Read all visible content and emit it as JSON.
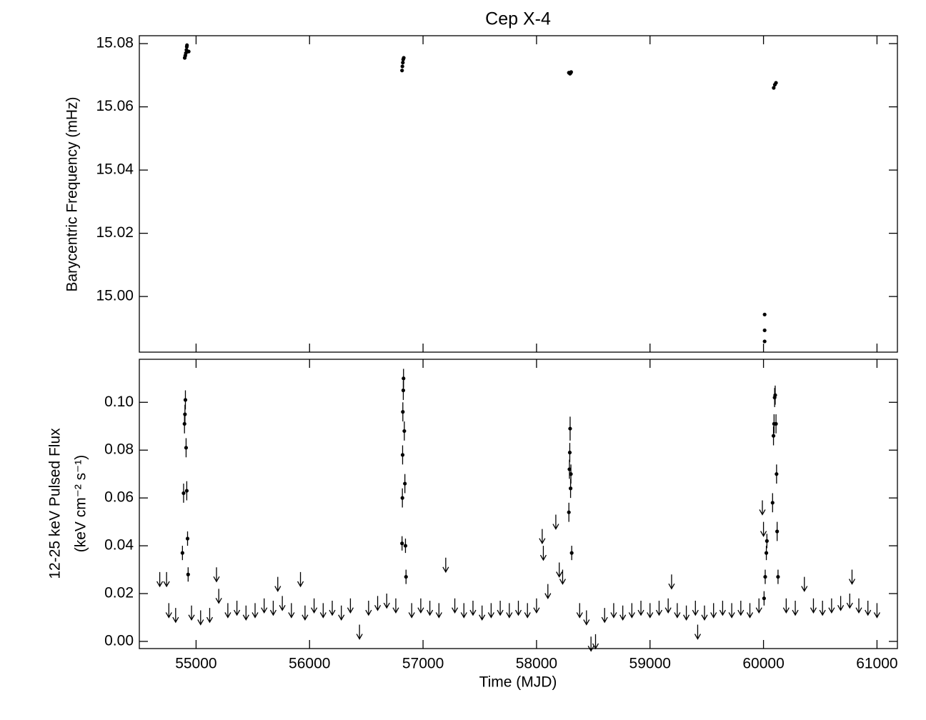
{
  "chart_data": [
    {
      "type": "scatter",
      "title": "Cep X-4",
      "ylabel": "Barycentric Frequency (mHz)",
      "xlim": [
        54500,
        61180
      ],
      "ylim": [
        14.9824,
        15.0825
      ],
      "yticks": [
        {
          "value": 15.0,
          "label": "15.00"
        },
        {
          "value": 15.02,
          "label": "15.02"
        },
        {
          "value": 15.04,
          "label": "15.04"
        },
        {
          "value": 15.06,
          "label": "15.06"
        },
        {
          "value": 15.08,
          "label": "15.08"
        }
      ],
      "series": [
        {
          "color": "#000000",
          "x": [
            54900,
            54905,
            54910,
            54915,
            54918,
            54920,
            54935,
            56815,
            56818,
            56822,
            56825,
            56830,
            58285,
            58295,
            58305,
            58300,
            60010,
            60010,
            60010,
            60090,
            60100,
            60110
          ],
          "values": [
            15.0755,
            15.0762,
            15.077,
            15.078,
            15.079,
            15.0795,
            15.0775,
            15.0715,
            15.0728,
            15.074,
            15.075,
            15.0755,
            15.0708,
            15.0705,
            15.071,
            15.0707,
            14.9943,
            14.9893,
            14.9858,
            15.066,
            15.067,
            15.0676
          ]
        }
      ]
    },
    {
      "type": "scatter",
      "xlabel": "Time (MJD)",
      "ylabel": [
        "12-25 keV Pulsed Flux",
        "(keV cm⁻² s⁻¹)"
      ],
      "xlim": [
        54500,
        61180
      ],
      "ylim": [
        -0.003,
        0.118
      ],
      "xticks": [
        55000,
        56000,
        57000,
        58000,
        59000,
        60000,
        61000
      ],
      "yticks": [
        {
          "value": 0,
          "label": "0.00"
        },
        0.02,
        0.04,
        0.06,
        0.08,
        {
          "value": 0.1,
          "label": "0.10"
        }
      ],
      "series": [
        {
          "color": "#000000",
          "x": [
            54880,
            54890,
            54898,
            54902,
            54906,
            54912,
            54918,
            54925,
            54930,
            56815,
            56818,
            56820,
            56822,
            56826,
            56828,
            56835,
            56840,
            56845,
            56850,
            58285,
            58290,
            58293,
            58296,
            58300,
            58303,
            58310,
            60005,
            60015,
            60025,
            60030,
            60080,
            60088,
            60093,
            60098,
            60103,
            60110,
            60115,
            60120,
            60128
          ],
          "values": [
            0.037,
            0.062,
            0.091,
            0.095,
            0.101,
            0.081,
            0.063,
            0.043,
            0.028,
            0.041,
            0.06,
            0.078,
            0.096,
            0.105,
            0.11,
            0.088,
            0.066,
            0.04,
            0.027,
            0.054,
            0.072,
            0.079,
            0.089,
            0.064,
            0.07,
            0.037,
            0.018,
            0.027,
            0.037,
            0.042,
            0.058,
            0.086,
            0.091,
            0.102,
            0.103,
            0.091,
            0.07,
            0.046,
            0.027
          ],
          "errors": [
            0.003,
            0.004,
            0.004,
            0.004,
            0.004,
            0.004,
            0.004,
            0.003,
            0.003,
            0.003,
            0.004,
            0.004,
            0.004,
            0.004,
            0.004,
            0.004,
            0.004,
            0.003,
            0.003,
            0.004,
            0.004,
            0.004,
            0.005,
            0.004,
            0.004,
            0.003,
            0.003,
            0.003,
            0.003,
            0.003,
            0.004,
            0.004,
            0.004,
            0.004,
            0.004,
            0.004,
            0.004,
            0.004,
            0.003
          ]
        },
        {
          "color": "#000000",
          "upper_limit": true,
          "x": [
            54680,
            54740,
            54760,
            54820,
            54960,
            55040,
            55120,
            55180,
            55200,
            55280,
            55360,
            55440,
            55520,
            55600,
            55680,
            55720,
            55760,
            55840,
            55920,
            55960,
            56040,
            56120,
            56200,
            56280,
            56360,
            56440,
            56520,
            56600,
            56680,
            56760,
            56900,
            56980,
            57060,
            57140,
            57200,
            57280,
            57360,
            57440,
            57520,
            57600,
            57680,
            57760,
            57840,
            57920,
            58000,
            58050,
            58060,
            58100,
            58170,
            58200,
            58230,
            58380,
            58440,
            58480,
            58520,
            58600,
            58680,
            58760,
            58840,
            58920,
            59000,
            59080,
            59160,
            59190,
            59240,
            59320,
            59400,
            59420,
            59480,
            59560,
            59640,
            59720,
            59800,
            59880,
            59960,
            59990,
            60000,
            60200,
            60280,
            60360,
            60440,
            60520,
            60600,
            60680,
            60760,
            60780,
            60840,
            60920,
            61000
          ],
          "values": [
            0.029,
            0.029,
            0.016,
            0.014,
            0.015,
            0.013,
            0.014,
            0.031,
            0.022,
            0.016,
            0.017,
            0.015,
            0.016,
            0.018,
            0.017,
            0.027,
            0.019,
            0.016,
            0.029,
            0.015,
            0.018,
            0.016,
            0.017,
            0.015,
            0.018,
            0.007,
            0.017,
            0.019,
            0.02,
            0.018,
            0.016,
            0.018,
            0.017,
            0.016,
            0.035,
            0.018,
            0.016,
            0.017,
            0.015,
            0.016,
            0.017,
            0.016,
            0.017,
            0.016,
            0.018,
            0.047,
            0.04,
            0.024,
            0.053,
            0.033,
            0.03,
            0.016,
            0.013,
            0.002,
            0.003,
            0.014,
            0.016,
            0.015,
            0.016,
            0.017,
            0.016,
            0.017,
            0.018,
            0.028,
            0.016,
            0.015,
            0.017,
            0.007,
            0.015,
            0.016,
            0.017,
            0.016,
            0.017,
            0.016,
            0.018,
            0.059,
            0.05,
            0.018,
            0.017,
            0.027,
            0.018,
            0.017,
            0.018,
            0.019,
            0.02,
            0.03,
            0.018,
            0.017,
            0.016
          ]
        }
      ]
    }
  ]
}
